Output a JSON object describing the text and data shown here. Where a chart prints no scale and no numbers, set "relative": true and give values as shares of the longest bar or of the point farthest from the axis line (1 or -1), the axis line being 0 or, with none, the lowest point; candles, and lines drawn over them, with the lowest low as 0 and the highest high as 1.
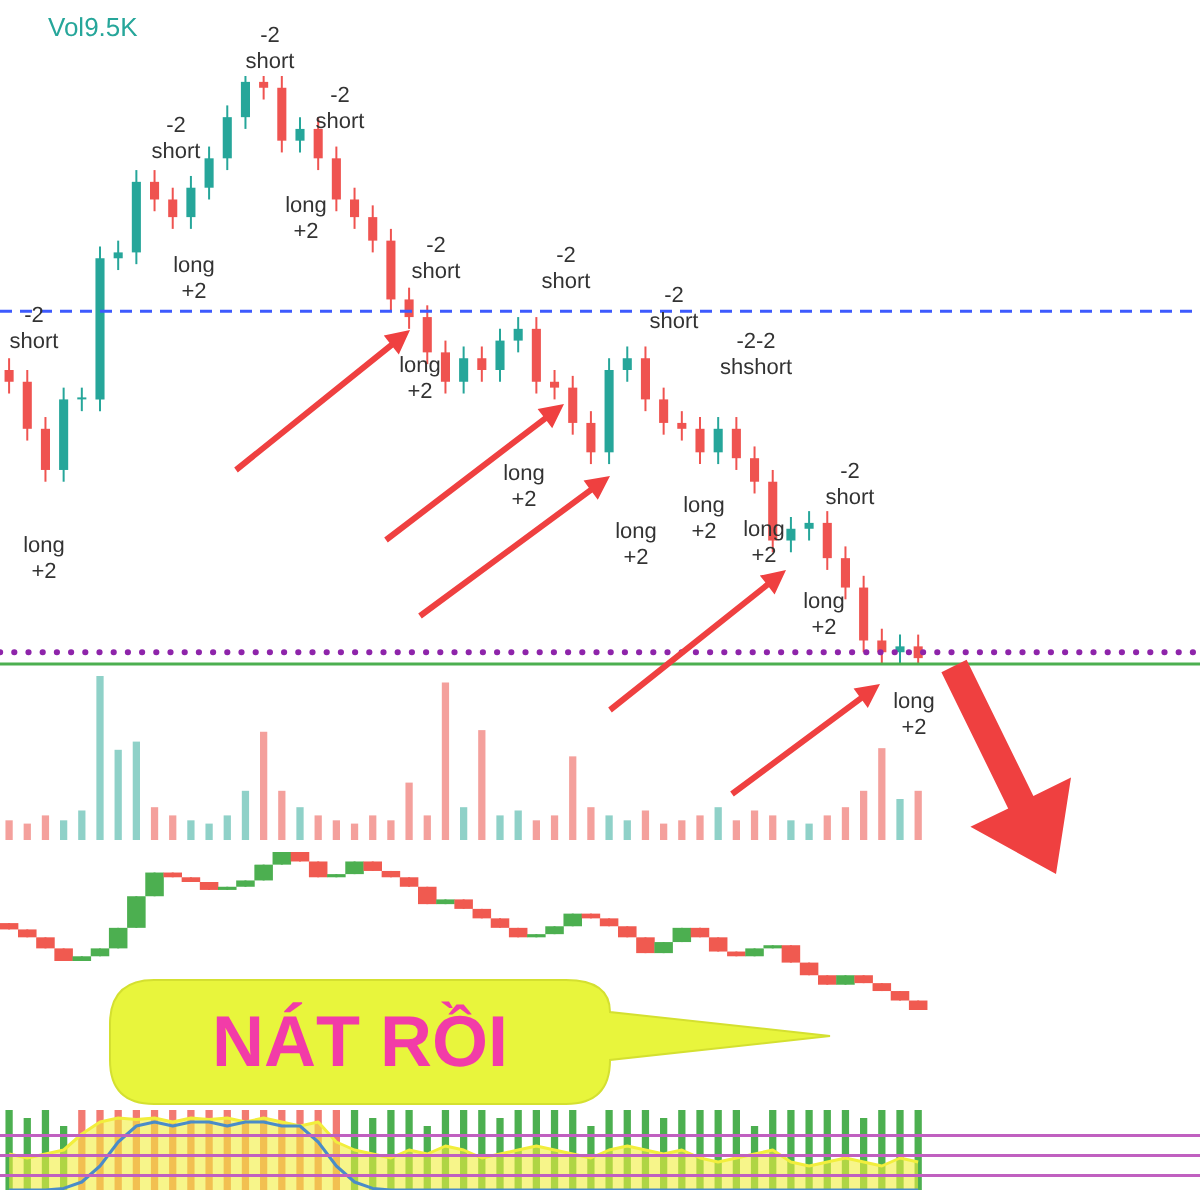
{
  "chart_data": [
    {
      "type": "candlestick",
      "relative": true,
      "categories": [
        null,
        null,
        null,
        null,
        null,
        null,
        null,
        null,
        null,
        null,
        null,
        null,
        null,
        null,
        null,
        null,
        null,
        null,
        null,
        null,
        null,
        null,
        null,
        null,
        null,
        null,
        null,
        null,
        null,
        null,
        null,
        null,
        null,
        null,
        null,
        null,
        null,
        null,
        null,
        null,
        null,
        null,
        null,
        null,
        null,
        null,
        null,
        null,
        null,
        null,
        null,
        null,
        null,
        null,
        null,
        null,
        null,
        null,
        null,
        null,
        null,
        null,
        null,
        null,
        null,
        null
      ],
      "ohlc": [
        [
          0.5,
          0.52,
          0.46,
          0.48
        ],
        [
          0.48,
          0.5,
          0.38,
          0.4
        ],
        [
          0.4,
          0.42,
          0.31,
          0.33
        ],
        [
          0.33,
          0.47,
          0.31,
          0.45
        ],
        [
          0.45,
          0.47,
          0.43,
          0.45
        ],
        [
          0.45,
          0.71,
          0.43,
          0.69
        ],
        [
          0.69,
          0.72,
          0.67,
          0.7
        ],
        [
          0.7,
          0.84,
          0.68,
          0.82
        ],
        [
          0.82,
          0.84,
          0.77,
          0.79
        ],
        [
          0.79,
          0.81,
          0.74,
          0.76
        ],
        [
          0.76,
          0.83,
          0.74,
          0.81
        ],
        [
          0.81,
          0.88,
          0.79,
          0.86
        ],
        [
          0.86,
          0.95,
          0.84,
          0.93
        ],
        [
          0.93,
          1,
          0.91,
          0.99
        ],
        [
          0.99,
          1,
          0.96,
          0.98
        ],
        [
          0.98,
          1,
          0.87,
          0.89
        ],
        [
          0.89,
          0.93,
          0.87,
          0.91
        ],
        [
          0.91,
          0.93,
          0.84,
          0.86
        ],
        [
          0.86,
          0.88,
          0.77,
          0.79
        ],
        [
          0.79,
          0.81,
          0.74,
          0.76
        ],
        [
          0.76,
          0.78,
          0.7,
          0.72
        ],
        [
          0.72,
          0.74,
          0.6,
          0.62
        ],
        [
          0.62,
          0.64,
          0.57,
          0.59
        ],
        [
          0.59,
          0.61,
          0.51,
          0.53
        ],
        [
          0.53,
          0.55,
          0.46,
          0.48
        ],
        [
          0.48,
          0.54,
          0.46,
          0.52
        ],
        [
          0.52,
          0.54,
          0.48,
          0.5
        ],
        [
          0.5,
          0.57,
          0.48,
          0.55
        ],
        [
          0.55,
          0.59,
          0.53,
          0.57
        ],
        [
          0.57,
          0.59,
          0.46,
          0.48
        ],
        [
          0.48,
          0.5,
          0.45,
          0.47
        ],
        [
          0.47,
          0.49,
          0.39,
          0.41
        ],
        [
          0.41,
          0.43,
          0.34,
          0.36
        ],
        [
          0.36,
          0.52,
          0.34,
          0.5
        ],
        [
          0.5,
          0.54,
          0.48,
          0.52
        ],
        [
          0.52,
          0.54,
          0.43,
          0.45
        ],
        [
          0.45,
          0.47,
          0.39,
          0.41
        ],
        [
          0.41,
          0.43,
          0.38,
          0.4
        ],
        [
          0.4,
          0.42,
          0.34,
          0.36
        ],
        [
          0.36,
          0.42,
          0.34,
          0.4
        ],
        [
          0.4,
          0.42,
          0.33,
          0.35
        ],
        [
          0.35,
          0.37,
          0.29,
          0.31
        ],
        [
          0.31,
          0.33,
          0.19,
          0.21
        ],
        [
          0.21,
          0.25,
          0.19,
          0.23
        ],
        [
          0.23,
          0.26,
          0.21,
          0.24
        ],
        [
          0.24,
          0.26,
          0.16,
          0.18
        ],
        [
          0.18,
          0.2,
          0.11,
          0.13
        ],
        [
          0.13,
          0.15,
          0.02,
          0.04
        ],
        [
          0.04,
          0.06,
          0,
          0.02
        ],
        [
          0.02,
          0.05,
          0,
          0.03
        ],
        [
          0.03,
          0.05,
          0,
          0.01
        ],
        null,
        null,
        null,
        null,
        null,
        null,
        null,
        null,
        null,
        null,
        null,
        null,
        null,
        null,
        null
      ],
      "colors": [
        "#ef5350",
        "#ef5350",
        "#ef5350",
        "#26a69a",
        "#26a69a",
        "#26a69a",
        "#26a69a",
        "#26a69a",
        "#ef5350",
        "#ef5350",
        "#26a69a",
        "#26a69a",
        "#26a69a",
        "#26a69a",
        "#ef5350",
        "#ef5350",
        "#26a69a",
        "#ef5350",
        "#ef5350",
        "#ef5350",
        "#ef5350",
        "#ef5350",
        "#ef5350",
        "#ef5350",
        "#ef5350",
        "#26a69a",
        "#ef5350",
        "#26a69a",
        "#26a69a",
        "#ef5350",
        "#ef5350",
        "#ef5350",
        "#ef5350",
        "#26a69a",
        "#26a69a",
        "#ef5350",
        "#ef5350",
        "#ef5350",
        "#ef5350",
        "#26a69a",
        "#ef5350",
        "#ef5350",
        "#ef5350",
        "#26a69a",
        "#26a69a",
        "#ef5350",
        "#ef5350",
        "#ef5350",
        "#ef5350",
        "#26a69a",
        "#ef5350",
        null,
        null,
        null,
        null,
        null,
        null,
        null,
        null,
        null,
        null,
        null,
        null,
        null,
        null,
        null
      ],
      "ref_lines": [
        {
          "axis": "y",
          "value": 0.6,
          "color": "#3d5afe",
          "line_style": "dashed"
        },
        {
          "axis": "y",
          "value": 0.02,
          "color": "#8e24aa",
          "line_style": "dotted"
        },
        {
          "axis": "y",
          "value": 0,
          "color": "#4caf50",
          "line_style": "solid"
        }
      ],
      "annotations": [
        "Vol9.5K",
        "-2 short",
        "long +2",
        "-2 short",
        "long +2",
        "-2 short",
        "long +2",
        "-2 short",
        "long +2",
        "-2 short",
        "long +2",
        "-2 short",
        "long +2",
        "-2 short",
        "long +2",
        "-2-2 shshort",
        "long +2",
        "long +2",
        "-2 short"
      ]
    },
    {
      "type": "bar",
      "relative": true,
      "categories": [
        null,
        null,
        null,
        null,
        null,
        null,
        null,
        null,
        null,
        null,
        null,
        null,
        null,
        null,
        null,
        null,
        null,
        null,
        null,
        null,
        null,
        null,
        null,
        null,
        null,
        null,
        null,
        null,
        null,
        null,
        null,
        null,
        null,
        null,
        null,
        null,
        null,
        null,
        null,
        null,
        null,
        null,
        null,
        null,
        null,
        null,
        null,
        null,
        null,
        null,
        null,
        null,
        null,
        null,
        null,
        null,
        null,
        null,
        null,
        null,
        null,
        null,
        null,
        null,
        null,
        null
      ],
      "values": [
        0.12,
        0.1,
        0.15,
        0.12,
        0.18,
        1,
        0.55,
        0.6,
        0.2,
        0.15,
        0.12,
        0.1,
        0.15,
        0.3,
        0.66,
        0.3,
        0.2,
        0.15,
        0.12,
        0.1,
        0.15,
        0.12,
        0.35,
        0.15,
        0.96,
        0.2,
        0.67,
        0.15,
        0.18,
        0.12,
        0.15,
        0.51,
        0.2,
        0.15,
        0.12,
        0.18,
        0.1,
        0.12,
        0.15,
        0.2,
        0.12,
        0.18,
        0.15,
        0.12,
        0.1,
        0.15,
        0.2,
        0.3,
        0.56,
        0.25,
        0.3,
        null,
        null,
        null,
        null,
        null,
        null,
        null,
        null,
        null,
        null,
        null,
        null,
        null,
        null,
        null
      ],
      "colors": [
        "#f4a09c",
        "#f4a09c",
        "#f4a09c",
        "#8fd1c8",
        "#8fd1c8",
        "#8fd1c8",
        "#8fd1c8",
        "#8fd1c8",
        "#f4a09c",
        "#f4a09c",
        "#8fd1c8",
        "#8fd1c8",
        "#8fd1c8",
        "#8fd1c8",
        "#f4a09c",
        "#f4a09c",
        "#8fd1c8",
        "#f4a09c",
        "#f4a09c",
        "#f4a09c",
        "#f4a09c",
        "#f4a09c",
        "#f4a09c",
        "#f4a09c",
        "#f4a09c",
        "#8fd1c8",
        "#f4a09c",
        "#8fd1c8",
        "#8fd1c8",
        "#f4a09c",
        "#f4a09c",
        "#f4a09c",
        "#f4a09c",
        "#8fd1c8",
        "#8fd1c8",
        "#f4a09c",
        "#f4a09c",
        "#f4a09c",
        "#f4a09c",
        "#8fd1c8",
        "#f4a09c",
        "#f4a09c",
        "#f4a09c",
        "#8fd1c8",
        "#8fd1c8",
        "#f4a09c",
        "#f4a09c",
        "#f4a09c",
        "#f4a09c",
        "#8fd1c8",
        "#f4a09c",
        null,
        null,
        null,
        null,
        null,
        null,
        null,
        null,
        null,
        null,
        null,
        null,
        null,
        null,
        null
      ],
      "annotations": [
        "long +2"
      ]
    },
    {
      "type": "candlestick",
      "relative": true,
      "categories": [
        null,
        null,
        null,
        null,
        null,
        null,
        null,
        null,
        null,
        null,
        null,
        null,
        null,
        null,
        null,
        null,
        null,
        null,
        null,
        null,
        null,
        null,
        null,
        null,
        null,
        null,
        null,
        null,
        null,
        null,
        null,
        null,
        null,
        null,
        null,
        null,
        null,
        null,
        null,
        null,
        null,
        null,
        null,
        null,
        null,
        null,
        null,
        null,
        null,
        null,
        null,
        null,
        null,
        null,
        null,
        null,
        null,
        null,
        null,
        null,
        null,
        null,
        null,
        null,
        null,
        null
      ],
      "ohlc": [
        [
          0.55,
          0.55,
          0.51,
          0.51
        ],
        [
          0.51,
          0.51,
          0.46,
          0.46
        ],
        [
          0.46,
          0.46,
          0.39,
          0.39
        ],
        [
          0.39,
          0.39,
          0.31,
          0.31
        ],
        [
          0.31,
          0.34,
          0.31,
          0.34
        ],
        [
          0.34,
          0.39,
          0.34,
          0.39
        ],
        [
          0.39,
          0.52,
          0.39,
          0.52
        ],
        [
          0.52,
          0.72,
          0.52,
          0.72
        ],
        [
          0.72,
          0.87,
          0.72,
          0.87
        ],
        [
          0.87,
          0.87,
          0.84,
          0.84
        ],
        [
          0.84,
          0.84,
          0.81,
          0.81
        ],
        [
          0.81,
          0.81,
          0.76,
          0.76
        ],
        [
          0.76,
          0.78,
          0.76,
          0.78
        ],
        [
          0.78,
          0.82,
          0.78,
          0.82
        ],
        [
          0.82,
          0.92,
          0.82,
          0.92
        ],
        [
          0.92,
          1,
          0.92,
          1
        ],
        [
          1,
          1,
          0.94,
          0.94
        ],
        [
          0.94,
          0.94,
          0.84,
          0.84
        ],
        [
          0.84,
          0.86,
          0.84,
          0.86
        ],
        [
          0.86,
          0.94,
          0.86,
          0.94
        ],
        [
          0.94,
          0.94,
          0.88,
          0.88
        ],
        [
          0.88,
          0.88,
          0.84,
          0.84
        ],
        [
          0.84,
          0.84,
          0.78,
          0.78
        ],
        [
          0.78,
          0.78,
          0.67,
          0.67
        ],
        [
          0.67,
          0.7,
          0.67,
          0.7
        ],
        [
          0.7,
          0.7,
          0.64,
          0.64
        ],
        [
          0.64,
          0.64,
          0.58,
          0.58
        ],
        [
          0.58,
          0.58,
          0.52,
          0.52
        ],
        [
          0.52,
          0.52,
          0.46,
          0.46
        ],
        [
          0.46,
          0.48,
          0.46,
          0.48
        ],
        [
          0.48,
          0.53,
          0.48,
          0.53
        ],
        [
          0.53,
          0.61,
          0.53,
          0.61
        ],
        [
          0.61,
          0.61,
          0.58,
          0.58
        ],
        [
          0.58,
          0.58,
          0.53,
          0.53
        ],
        [
          0.53,
          0.53,
          0.46,
          0.46
        ],
        [
          0.46,
          0.46,
          0.36,
          0.36
        ],
        [
          0.36,
          0.43,
          0.36,
          0.43
        ],
        [
          0.43,
          0.52,
          0.43,
          0.52
        ],
        [
          0.52,
          0.52,
          0.46,
          0.46
        ],
        [
          0.46,
          0.46,
          0.37,
          0.37
        ],
        [
          0.37,
          0.37,
          0.34,
          0.34
        ],
        [
          0.34,
          0.39,
          0.34,
          0.39
        ],
        [
          0.39,
          0.41,
          0.39,
          0.41
        ],
        [
          0.41,
          0.41,
          0.3,
          0.3
        ],
        [
          0.3,
          0.3,
          0.22,
          0.22
        ],
        [
          0.22,
          0.22,
          0.16,
          0.16
        ],
        [
          0.16,
          0.22,
          0.16,
          0.22
        ],
        [
          0.22,
          0.22,
          0.17,
          0.17
        ],
        [
          0.17,
          0.17,
          0.12,
          0.12
        ],
        [
          0.12,
          0.12,
          0.06,
          0.06
        ],
        [
          0.06,
          0.06,
          0,
          0
        ],
        null,
        null,
        null,
        null,
        null,
        null,
        null,
        null,
        null,
        null,
        null,
        null,
        null,
        null,
        null
      ],
      "colors": [
        "#f05a50",
        "#f05a50",
        "#f05a50",
        "#f05a50",
        "#4caf50",
        "#4caf50",
        "#4caf50",
        "#4caf50",
        "#4caf50",
        "#f05a50",
        "#f05a50",
        "#f05a50",
        "#4caf50",
        "#4caf50",
        "#4caf50",
        "#4caf50",
        "#f05a50",
        "#f05a50",
        "#4caf50",
        "#4caf50",
        "#f05a50",
        "#f05a50",
        "#f05a50",
        "#f05a50",
        "#4caf50",
        "#f05a50",
        "#f05a50",
        "#f05a50",
        "#f05a50",
        "#4caf50",
        "#4caf50",
        "#4caf50",
        "#f05a50",
        "#f05a50",
        "#f05a50",
        "#f05a50",
        "#4caf50",
        "#4caf50",
        "#f05a50",
        "#f05a50",
        "#f05a50",
        "#4caf50",
        "#4caf50",
        "#f05a50",
        "#f05a50",
        "#f05a50",
        "#4caf50",
        "#f05a50",
        "#f05a50",
        "#f05a50",
        "#f05a50",
        null,
        null,
        null,
        null,
        null,
        null,
        null,
        null,
        null,
        null,
        null,
        null,
        null,
        null,
        null
      ],
      "annotations": [
        "NÁT RỒI"
      ]
    },
    {
      "type": "bar",
      "relative": true,
      "categories": [
        null,
        null,
        null,
        null,
        null,
        null,
        null,
        null,
        null,
        null,
        null,
        null,
        null,
        null,
        null,
        null,
        null,
        null,
        null,
        null,
        null,
        null,
        null,
        null,
        null,
        null,
        null,
        null,
        null,
        null,
        null,
        null,
        null,
        null,
        null,
        null,
        null,
        null,
        null,
        null,
        null,
        null,
        null,
        null,
        null,
        null,
        null,
        null,
        null,
        null,
        null,
        null,
        null,
        null,
        null,
        null,
        null,
        null,
        null,
        null,
        null,
        null,
        null,
        null,
        null,
        null
      ],
      "series": [
        {
          "type": "area",
          "color": "#f2ee3c",
          "values": [
            0.45,
            0.4,
            0.45,
            0.5,
            0.7,
            0.85,
            0.9,
            0.88,
            0.9,
            0.85,
            0.9,
            0.88,
            0.9,
            0.85,
            0.9,
            0.85,
            0.8,
            0.85,
            0.6,
            0.5,
            0.45,
            0.4,
            0.5,
            0.45,
            0.55,
            0.5,
            0.4,
            0.45,
            0.5,
            0.55,
            0.5,
            0.45,
            0.4,
            0.5,
            0.55,
            0.5,
            0.45,
            0.5,
            0.4,
            0.35,
            0.4,
            0.45,
            0.5,
            0.35,
            0.3,
            0.35,
            0.4,
            0.35,
            0.3,
            0.4,
            0.35,
            null,
            null,
            null,
            null,
            null,
            null,
            null,
            null,
            null,
            null,
            null,
            null,
            null,
            null,
            null
          ]
        },
        {
          "values": [
            1,
            0.9,
            1,
            0.8,
            1,
            1,
            1,
            1,
            1,
            1,
            1,
            1,
            1,
            1,
            1,
            1,
            1,
            1,
            1,
            1,
            0.9,
            1,
            1,
            0.8,
            1,
            1,
            1,
            0.9,
            1,
            1,
            1,
            1,
            0.8,
            1,
            1,
            1,
            0.9,
            1,
            1,
            1,
            1,
            0.8,
            1,
            1,
            1,
            1,
            1,
            0.9,
            1,
            1,
            1,
            null,
            null,
            null,
            null,
            null,
            null,
            null,
            null,
            null,
            null,
            null,
            null,
            null,
            null,
            null
          ],
          "colors": [
            "#4caf50",
            "#4caf50",
            "#4caf50",
            "#4caf50",
            "#f27a72",
            "#f27a72",
            "#f27a72",
            "#f27a72",
            "#f27a72",
            "#f27a72",
            "#f27a72",
            "#f27a72",
            "#f27a72",
            "#f27a72",
            "#f27a72",
            "#f27a72",
            "#f27a72",
            "#f27a72",
            "#f27a72",
            "#4caf50",
            "#4caf50",
            "#4caf50",
            "#4caf50",
            "#4caf50",
            "#4caf50",
            "#4caf50",
            "#4caf50",
            "#4caf50",
            "#4caf50",
            "#4caf50",
            "#4caf50",
            "#4caf50",
            "#4caf50",
            "#4caf50",
            "#4caf50",
            "#4caf50",
            "#4caf50",
            "#4caf50",
            "#4caf50",
            "#4caf50",
            "#4caf50",
            "#4caf50",
            "#4caf50",
            "#4caf50",
            "#4caf50",
            "#4caf50",
            "#4caf50",
            "#4caf50",
            "#4caf50",
            "#4caf50",
            "#4caf50",
            null,
            null,
            null,
            null,
            null,
            null,
            null,
            null,
            null,
            null,
            null,
            null,
            null,
            null,
            null
          ]
        },
        {
          "type": "line",
          "color": "#4a8cc8",
          "values": [
            0,
            0,
            0,
            0.02,
            0.1,
            0.3,
            0.6,
            0.8,
            0.85,
            0.8,
            0.85,
            0.85,
            0.8,
            0.85,
            0.85,
            0.8,
            0.8,
            0.6,
            0.3,
            0.1,
            0.02,
            0,
            0,
            0,
            0,
            0,
            0,
            0,
            0,
            0,
            0,
            0,
            0,
            0,
            0,
            0,
            0,
            0,
            0,
            0,
            0,
            0,
            0,
            0,
            0,
            0,
            0,
            0,
            0,
            0,
            0,
            null,
            null,
            null,
            null,
            null,
            null,
            null,
            null,
            null,
            null,
            null,
            null,
            null,
            null,
            null
          ]
        }
      ],
      "ref_lines": [
        {
          "axis": "y",
          "value": 0.68,
          "color": "#c060c0",
          "line_style": "solid"
        },
        {
          "axis": "y",
          "value": 0.43,
          "color": "#c060c0",
          "line_style": "solid"
        },
        {
          "axis": "y",
          "value": 0.18,
          "color": "#c060c0",
          "line_style": "solid"
        }
      ]
    }
  ]
}
